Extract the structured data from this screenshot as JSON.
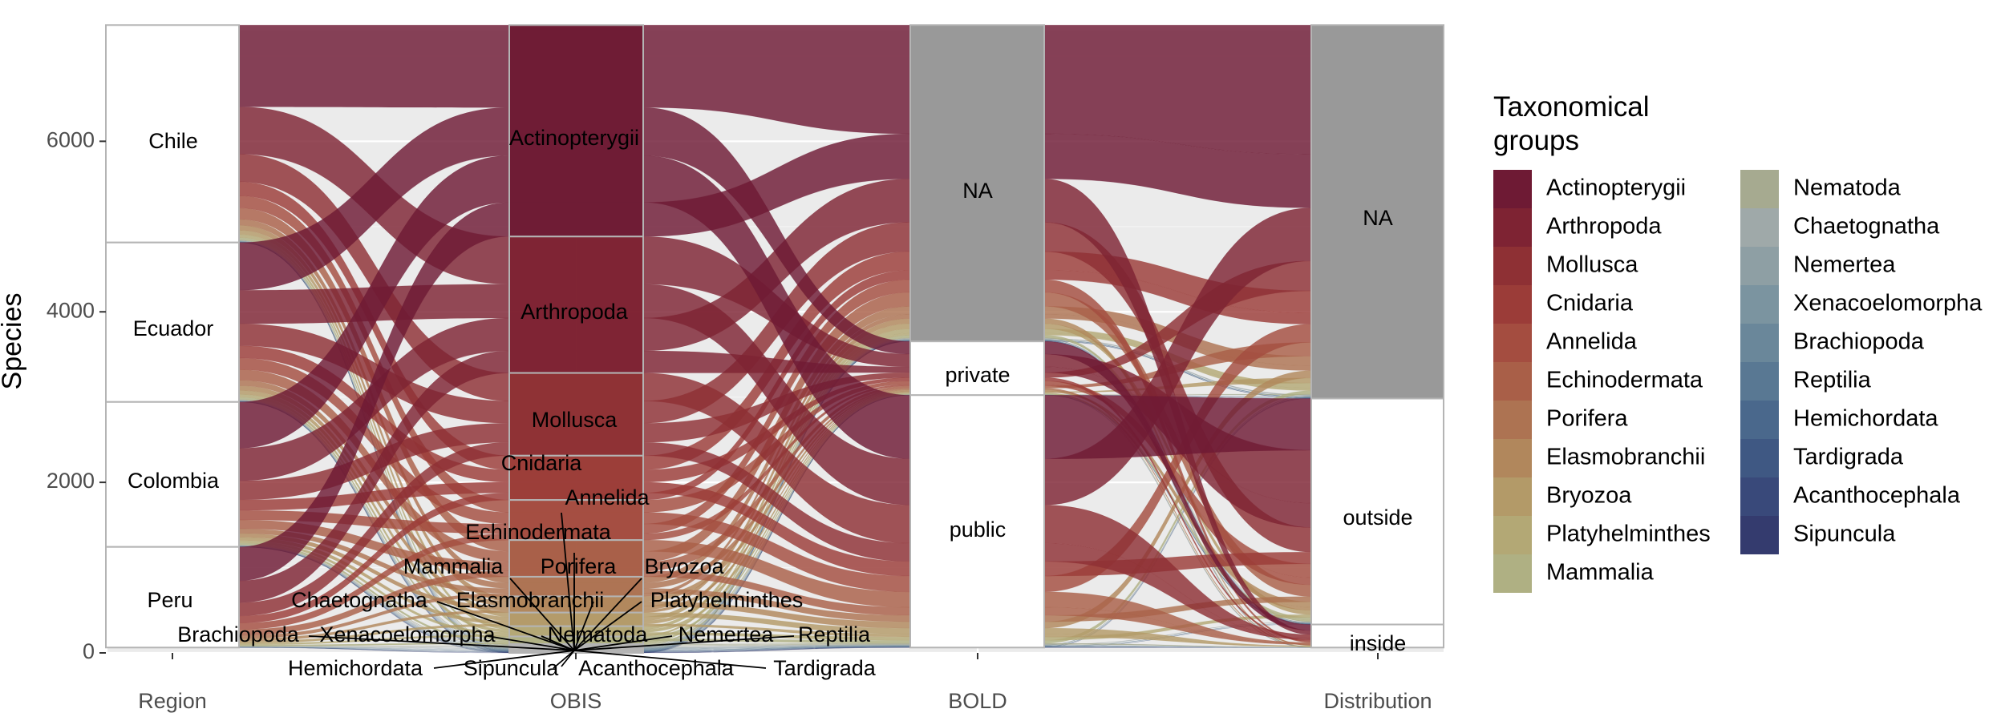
{
  "chart_data": {
    "type": "alluvial",
    "ylabel": "Species",
    "ylim": [
      0,
      7300
    ],
    "y_ticks": [
      0,
      2000,
      4000,
      6000
    ],
    "axes": [
      "Region",
      "OBIS",
      "BOLD",
      "Distribution"
    ],
    "strata": {
      "Region": [
        {
          "label": "Chile",
          "value": 2550
        },
        {
          "label": "Ecuador",
          "value": 1870
        },
        {
          "label": "Colombia",
          "value": 1700
        },
        {
          "label": "Peru",
          "value": 1180
        }
      ],
      "OBIS": [
        {
          "label": "Actinopterygii",
          "value": 2480
        },
        {
          "label": "Arthropoda",
          "value": 1600
        },
        {
          "label": "Mollusca",
          "value": 970
        },
        {
          "label": "Cnidaria",
          "value": 520
        },
        {
          "label": "Annelida",
          "value": 470
        },
        {
          "label": "Echinodermata",
          "value": 430
        },
        {
          "label": "Porifera",
          "value": 230
        },
        {
          "label": "Elasmobranchii",
          "value": 190
        },
        {
          "label": "Bryozoa",
          "value": 160
        },
        {
          "label": "Platyhelminthes",
          "value": 120
        },
        {
          "label": "Mammalia",
          "value": 90
        },
        {
          "label": "Nematoda",
          "value": 20
        },
        {
          "label": "Chaetognatha",
          "value": 15
        },
        {
          "label": "Nemertea",
          "value": 15
        },
        {
          "label": "Xenacoelomorpha",
          "value": 10
        },
        {
          "label": "Brachiopoda",
          "value": 10
        },
        {
          "label": "Reptilia",
          "value": 10
        },
        {
          "label": "Hemichordata",
          "value": 8
        },
        {
          "label": "Tardigrada",
          "value": 5
        },
        {
          "label": "Acanthocephala",
          "value": 5
        },
        {
          "label": "Sipuncula",
          "value": 5
        }
      ],
      "BOLD": [
        {
          "label": "NA",
          "value": 3710
        },
        {
          "label": "private",
          "value": 630
        },
        {
          "label": "public",
          "value": 2960
        }
      ],
      "Distribution": [
        {
          "label": "NA",
          "value": 4380
        },
        {
          "label": "outside",
          "value": 2650
        },
        {
          "label": "inside",
          "value": 270
        }
      ]
    },
    "legend": {
      "title": "Taxonomical groups",
      "position": "right",
      "items": [
        {
          "label": "Actinopterygii",
          "color": "#6e1a34"
        },
        {
          "label": "Arthropoda",
          "color": "#7e2333"
        },
        {
          "label": "Mollusca",
          "color": "#8e3034"
        },
        {
          "label": "Cnidaria",
          "color": "#9b3c38"
        },
        {
          "label": "Annelida",
          "color": "#a44d40"
        },
        {
          "label": "Echinodermata",
          "color": "#a95f48"
        },
        {
          "label": "Porifera",
          "color": "#ad7352"
        },
        {
          "label": "Elasmobranchii",
          "color": "#b1875c"
        },
        {
          "label": "Bryozoa",
          "color": "#b39a68"
        },
        {
          "label": "Platyhelminthes",
          "color": "#b3a875"
        },
        {
          "label": "Mammalia",
          "color": "#afb083"
        },
        {
          "label": "Nematoda",
          "color": "#a6aa90"
        },
        {
          "label": "Chaetognatha",
          "color": "#9fa9a9"
        },
        {
          "label": "Nemertea",
          "color": "#8e9fa4"
        },
        {
          "label": "Xenacoelomorpha",
          "color": "#7b94a0"
        },
        {
          "label": "Brachiopoda",
          "color": "#6a879a"
        },
        {
          "label": "Reptilia",
          "color": "#597893"
        },
        {
          "label": "Hemichordata",
          "color": "#4a688c"
        },
        {
          "label": "Tardigrada",
          "color": "#3f5883"
        },
        {
          "label": "Acanthocephala",
          "color": "#39497a"
        },
        {
          "label": "Sipuncula",
          "color": "#343b6e"
        }
      ]
    },
    "grid": true,
    "background": "#ebebeb",
    "na_color": "#999999"
  }
}
